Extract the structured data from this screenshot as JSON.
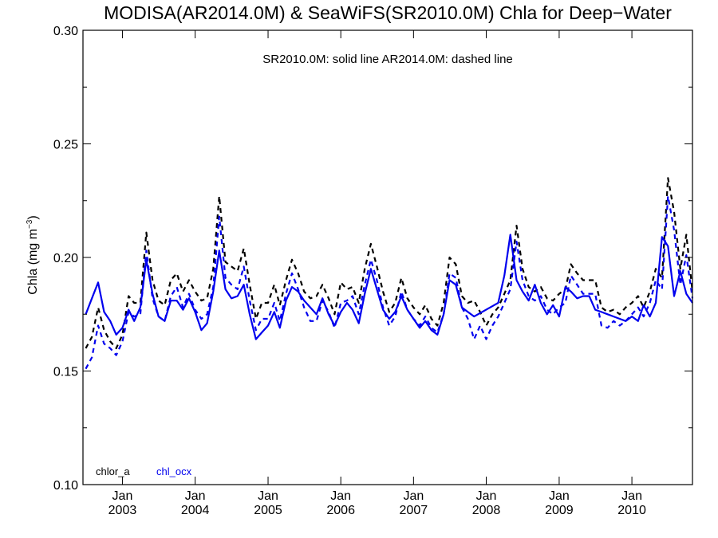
{
  "chart_data": {
    "type": "line",
    "title": "MODISA(AR2014.0M) & SeaWiFS(SR2010.0M)  Chla for Deep−Water",
    "subtitle": "SR2010.0M: solid line   AR2014.0M: dashed line",
    "ylabel": "Chla (mg m",
    "ylabel_sup": "−3",
    "ylabel_close": ")",
    "xlabel": "",
    "ylim": [
      0.1,
      0.3
    ],
    "xlim": [
      "2002-07-01",
      "2010-11-15"
    ],
    "y_ticks": [
      0.1,
      0.15,
      0.2,
      0.25,
      0.3
    ],
    "y_tick_labels": [
      "0.10",
      "0.15",
      "0.20",
      "0.25",
      "0.30"
    ],
    "x_ticks": [
      {
        "date": "2003-01-15",
        "month": "Jan",
        "year": "2003"
      },
      {
        "date": "2004-01-15",
        "month": "Jan",
        "year": "2004"
      },
      {
        "date": "2005-01-15",
        "month": "Jan",
        "year": "2005"
      },
      {
        "date": "2006-01-15",
        "month": "Jan",
        "year": "2006"
      },
      {
        "date": "2007-01-15",
        "month": "Jan",
        "year": "2007"
      },
      {
        "date": "2008-01-15",
        "month": "Jan",
        "year": "2008"
      },
      {
        "date": "2009-01-15",
        "month": "Jan",
        "year": "2009"
      },
      {
        "date": "2010-01-15",
        "month": "Jan",
        "year": "2010"
      }
    ],
    "legend": [
      {
        "label": "chlor_a",
        "color": "#000000"
      },
      {
        "label": "chl_ocx",
        "color": "#0000ee"
      }
    ],
    "legend_position": "bottom-left",
    "grid": false,
    "series": [
      {
        "name": "chl_ocx",
        "product": "SR2010.0M",
        "color": "#0000ee",
        "style": "solid",
        "x": [
          "2002-07-15",
          "2002-08-15",
          "2002-09-15",
          "2002-10-15",
          "2002-11-15",
          "2002-12-15",
          "2003-01-15",
          "2003-02-15",
          "2003-03-15",
          "2003-04-15",
          "2003-05-15",
          "2003-06-15",
          "2003-07-15",
          "2003-08-15",
          "2003-09-15",
          "2003-10-15",
          "2003-11-15",
          "2003-12-15",
          "2004-01-15",
          "2004-02-15",
          "2004-03-15",
          "2004-04-15",
          "2004-05-15",
          "2004-06-15",
          "2004-07-15",
          "2004-08-15",
          "2004-09-15",
          "2004-10-15",
          "2004-11-15",
          "2004-12-15",
          "2005-01-15",
          "2005-02-15",
          "2005-03-15",
          "2005-04-15",
          "2005-05-15",
          "2005-06-15",
          "2005-07-15",
          "2005-08-15",
          "2005-09-15",
          "2005-10-15",
          "2005-11-15",
          "2005-12-15",
          "2006-01-15",
          "2006-02-15",
          "2006-03-15",
          "2006-04-15",
          "2006-05-15",
          "2006-06-15",
          "2006-07-15",
          "2006-08-15",
          "2006-09-15",
          "2006-10-15",
          "2006-11-15",
          "2006-12-15",
          "2007-01-15",
          "2007-02-15",
          "2007-03-15",
          "2007-04-15",
          "2007-05-15",
          "2007-06-15",
          "2007-07-15",
          "2007-08-15",
          "2007-09-15",
          "2007-10-15",
          "2007-11-15",
          "2008-03-15",
          "2008-04-15",
          "2008-05-15",
          "2008-06-15",
          "2008-07-15",
          "2008-08-15",
          "2008-09-15",
          "2008-10-15",
          "2008-11-15",
          "2008-12-15",
          "2009-01-15",
          "2009-02-15",
          "2009-03-15",
          "2009-04-15",
          "2009-05-15",
          "2009-06-15",
          "2009-07-15",
          "2009-08-15",
          "2009-09-15",
          "2009-10-15",
          "2009-11-15",
          "2009-12-15",
          "2010-01-15",
          "2010-02-15",
          "2010-03-15",
          "2010-04-15",
          "2010-05-15",
          "2010-06-15",
          "2010-07-15",
          "2010-08-15",
          "2010-09-15",
          "2010-10-15",
          "2010-11-15"
        ],
        "y": [
          0.175,
          0.182,
          0.189,
          0.176,
          0.172,
          0.166,
          0.169,
          0.177,
          0.172,
          0.178,
          0.199,
          0.184,
          0.174,
          0.172,
          0.181,
          0.181,
          0.177,
          0.182,
          0.176,
          0.168,
          0.171,
          0.185,
          0.203,
          0.186,
          0.182,
          0.183,
          0.188,
          0.175,
          0.164,
          0.167,
          0.17,
          0.176,
          0.169,
          0.181,
          0.187,
          0.185,
          0.181,
          0.178,
          0.175,
          0.182,
          0.175,
          0.17,
          0.176,
          0.18,
          0.177,
          0.171,
          0.184,
          0.195,
          0.186,
          0.177,
          0.173,
          0.176,
          0.183,
          0.177,
          0.173,
          0.169,
          0.172,
          0.168,
          0.166,
          0.175,
          0.19,
          0.188,
          0.178,
          0.176,
          0.174,
          0.18,
          0.192,
          0.21,
          0.19,
          0.185,
          0.181,
          0.188,
          0.18,
          0.175,
          0.179,
          0.174,
          0.187,
          0.185,
          0.182,
          0.183,
          0.183,
          0.177,
          0.176,
          0.175,
          0.174,
          0.173,
          0.172,
          0.174,
          0.172,
          0.179,
          0.174,
          0.18,
          0.209,
          0.205,
          0.183,
          0.194,
          0.184,
          0.18
        ]
      },
      {
        "name": "chlor_a",
        "product": "AR2014.0M",
        "color": "#000000",
        "style": "dashed",
        "x": [
          "2002-07-15",
          "2002-08-15",
          "2002-09-15",
          "2002-10-15",
          "2002-11-15",
          "2002-12-15",
          "2003-01-15",
          "2003-02-15",
          "2003-03-15",
          "2003-04-15",
          "2003-05-15",
          "2003-06-15",
          "2003-07-15",
          "2003-08-15",
          "2003-09-15",
          "2003-10-15",
          "2003-11-15",
          "2003-12-15",
          "2004-01-15",
          "2004-02-15",
          "2004-03-15",
          "2004-04-15",
          "2004-05-15",
          "2004-06-15",
          "2004-07-15",
          "2004-08-15",
          "2004-09-15",
          "2004-10-15",
          "2004-11-15",
          "2004-12-15",
          "2005-01-15",
          "2005-02-15",
          "2005-03-15",
          "2005-04-15",
          "2005-05-15",
          "2005-06-15",
          "2005-07-15",
          "2005-08-15",
          "2005-09-15",
          "2005-10-15",
          "2005-11-15",
          "2005-12-15",
          "2006-01-15",
          "2006-02-15",
          "2006-03-15",
          "2006-04-15",
          "2006-05-15",
          "2006-06-15",
          "2006-07-15",
          "2006-08-15",
          "2006-09-15",
          "2006-10-15",
          "2006-11-15",
          "2006-12-15",
          "2007-01-15",
          "2007-02-15",
          "2007-03-15",
          "2007-04-15",
          "2007-05-15",
          "2007-06-15",
          "2007-07-15",
          "2007-08-15",
          "2007-09-15",
          "2007-10-15",
          "2007-11-15",
          "2007-12-15",
          "2008-01-15",
          "2008-02-15",
          "2008-03-15",
          "2008-04-15",
          "2008-05-15",
          "2008-06-15",
          "2008-07-15",
          "2008-08-15",
          "2008-09-15",
          "2008-10-15",
          "2008-11-15",
          "2008-12-15",
          "2009-01-15",
          "2009-02-15",
          "2009-03-15",
          "2009-04-15",
          "2009-05-15",
          "2009-06-15",
          "2009-07-15",
          "2009-08-15",
          "2009-09-15",
          "2009-10-15",
          "2009-11-15",
          "2009-12-15",
          "2010-01-15",
          "2010-02-15",
          "2010-03-15",
          "2010-04-15",
          "2010-05-15",
          "2010-06-15",
          "2010-07-15",
          "2010-08-15",
          "2010-09-15",
          "2010-10-15",
          "2010-11-15"
        ],
        "y": [
          0.16,
          0.165,
          0.178,
          0.168,
          0.163,
          0.16,
          0.166,
          0.183,
          0.18,
          0.18,
          0.211,
          0.19,
          0.181,
          0.179,
          0.19,
          0.193,
          0.185,
          0.19,
          0.185,
          0.181,
          0.182,
          0.195,
          0.227,
          0.198,
          0.196,
          0.194,
          0.204,
          0.188,
          0.173,
          0.18,
          0.18,
          0.188,
          0.179,
          0.19,
          0.199,
          0.193,
          0.185,
          0.182,
          0.183,
          0.188,
          0.182,
          0.175,
          0.189,
          0.186,
          0.187,
          0.18,
          0.195,
          0.206,
          0.196,
          0.185,
          0.176,
          0.18,
          0.191,
          0.182,
          0.178,
          0.175,
          0.179,
          0.173,
          0.17,
          0.18,
          0.2,
          0.197,
          0.183,
          0.18,
          0.181,
          0.176,
          0.17,
          0.175,
          0.178,
          0.184,
          0.19,
          0.214,
          0.195,
          0.187,
          0.185,
          0.187,
          0.182,
          0.181,
          0.184,
          0.186,
          0.197,
          0.193,
          0.19,
          0.19,
          0.19,
          0.178,
          0.176,
          0.177,
          0.175,
          0.178,
          0.18,
          0.183,
          0.178,
          0.185,
          0.195,
          0.191,
          0.235,
          0.22,
          0.195,
          0.21,
          0.185
        ]
      },
      {
        "name": "chl_ocx",
        "product": "AR2014.0M",
        "color": "#0000ee",
        "style": "dashed",
        "x": [
          "2002-07-15",
          "2002-08-15",
          "2002-09-15",
          "2002-10-15",
          "2002-11-15",
          "2002-12-15",
          "2003-01-15",
          "2003-02-15",
          "2003-03-15",
          "2003-04-15",
          "2003-05-15",
          "2003-06-15",
          "2003-07-15",
          "2003-08-15",
          "2003-09-15",
          "2003-10-15",
          "2003-11-15",
          "2003-12-15",
          "2004-01-15",
          "2004-02-15",
          "2004-03-15",
          "2004-04-15",
          "2004-05-15",
          "2004-06-15",
          "2004-07-15",
          "2004-08-15",
          "2004-09-15",
          "2004-10-15",
          "2004-11-15",
          "2004-12-15",
          "2005-01-15",
          "2005-02-15",
          "2005-03-15",
          "2005-04-15",
          "2005-05-15",
          "2005-06-15",
          "2005-07-15",
          "2005-08-15",
          "2005-09-15",
          "2005-10-15",
          "2005-11-15",
          "2005-12-15",
          "2006-01-15",
          "2006-02-15",
          "2006-03-15",
          "2006-04-15",
          "2006-05-15",
          "2006-06-15",
          "2006-07-15",
          "2006-08-15",
          "2006-09-15",
          "2006-10-15",
          "2006-11-15",
          "2006-12-15",
          "2007-01-15",
          "2007-02-15",
          "2007-03-15",
          "2007-04-15",
          "2007-05-15",
          "2007-06-15",
          "2007-07-15",
          "2007-08-15",
          "2007-09-15",
          "2007-10-15",
          "2007-11-15",
          "2007-12-15",
          "2008-01-15",
          "2008-02-15",
          "2008-03-15",
          "2008-04-15",
          "2008-05-15",
          "2008-06-15",
          "2008-07-15",
          "2008-08-15",
          "2008-09-15",
          "2008-10-15",
          "2008-11-15",
          "2008-12-15",
          "2009-01-15",
          "2009-02-15",
          "2009-03-15",
          "2009-04-15",
          "2009-05-15",
          "2009-06-15",
          "2009-07-15",
          "2009-08-15",
          "2009-09-15",
          "2009-10-15",
          "2009-11-15",
          "2009-12-15",
          "2010-01-15",
          "2010-02-15",
          "2010-03-15",
          "2010-04-15",
          "2010-05-15",
          "2010-06-15",
          "2010-07-15",
          "2010-08-15",
          "2010-09-15",
          "2010-10-15",
          "2010-11-15"
        ],
        "y": [
          0.151,
          0.156,
          0.17,
          0.162,
          0.16,
          0.157,
          0.163,
          0.176,
          0.174,
          0.175,
          0.203,
          0.182,
          0.174,
          0.172,
          0.183,
          0.187,
          0.178,
          0.184,
          0.177,
          0.173,
          0.175,
          0.187,
          0.218,
          0.191,
          0.188,
          0.186,
          0.196,
          0.181,
          0.168,
          0.173,
          0.173,
          0.18,
          0.172,
          0.184,
          0.193,
          0.186,
          0.178,
          0.172,
          0.172,
          0.181,
          0.176,
          0.169,
          0.18,
          0.181,
          0.183,
          0.175,
          0.188,
          0.199,
          0.19,
          0.178,
          0.17,
          0.174,
          0.185,
          0.177,
          0.173,
          0.17,
          0.174,
          0.169,
          0.167,
          0.175,
          0.193,
          0.191,
          0.178,
          0.173,
          0.164,
          0.17,
          0.164,
          0.17,
          0.174,
          0.18,
          0.186,
          0.207,
          0.19,
          0.183,
          0.181,
          0.183,
          0.177,
          0.175,
          0.178,
          0.18,
          0.192,
          0.188,
          0.184,
          0.184,
          0.184,
          0.17,
          0.169,
          0.172,
          0.17,
          0.172,
          0.175,
          0.178,
          0.174,
          0.18,
          0.19,
          0.186,
          0.227,
          0.212,
          0.188,
          0.201,
          0.182
        ]
      }
    ]
  }
}
